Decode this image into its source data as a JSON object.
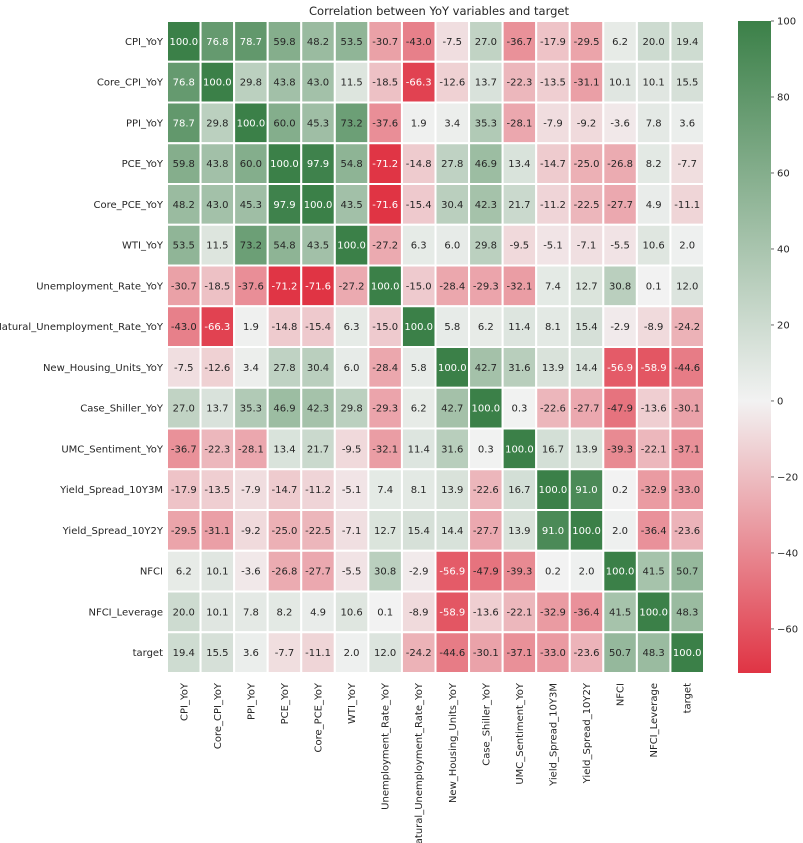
{
  "chart_data": {
    "type": "heatmap",
    "title": "Correlation between YoY variables and target",
    "labels": [
      "CPI_YoY",
      "Core_CPI_YoY",
      "PPI_YoY",
      "PCE_YoY",
      "Core_PCE_YoY",
      "WTI_YoY",
      "Unemployment_Rate_YoY",
      "Natural_Unemployment_Rate_YoY",
      "New_Housing_Units_YoY",
      "Case_Shiller_YoY",
      "UMC_Sentiment_YoY",
      "Yield_Spread_10Y3M",
      "Yield_Spread_10Y2Y",
      "NFCI",
      "NFCI_Leverage",
      "target"
    ],
    "values": [
      [
        100.0,
        76.8,
        78.7,
        59.8,
        48.2,
        53.5,
        -30.7,
        -43.0,
        -7.5,
        27.0,
        -36.7,
        -17.9,
        -29.5,
        6.2,
        20.0,
        19.4
      ],
      [
        76.8,
        100.0,
        29.8,
        43.8,
        43.0,
        11.5,
        -18.5,
        -66.3,
        -12.6,
        13.7,
        -22.3,
        -13.5,
        -31.1,
        10.1,
        10.1,
        15.5
      ],
      [
        78.7,
        29.8,
        100.0,
        60.0,
        45.3,
        73.2,
        -37.6,
        1.9,
        3.4,
        35.3,
        -28.1,
        -7.9,
        -9.2,
        -3.6,
        7.8,
        3.6
      ],
      [
        59.8,
        43.8,
        60.0,
        100.0,
        97.9,
        54.8,
        -71.2,
        -14.8,
        27.8,
        46.9,
        13.4,
        -14.7,
        -25.0,
        -26.8,
        8.2,
        -7.7
      ],
      [
        48.2,
        43.0,
        45.3,
        97.9,
        100.0,
        43.5,
        -71.6,
        -15.4,
        30.4,
        42.3,
        21.7,
        -11.2,
        -22.5,
        -27.7,
        4.9,
        -11.1
      ],
      [
        53.5,
        11.5,
        73.2,
        54.8,
        43.5,
        100.0,
        -27.2,
        6.3,
        6.0,
        29.8,
        -9.5,
        -5.1,
        -7.1,
        -5.5,
        10.6,
        2.0
      ],
      [
        -30.7,
        -18.5,
        -37.6,
        -71.2,
        -71.6,
        -27.2,
        100.0,
        -15.0,
        -28.4,
        -29.3,
        -32.1,
        7.4,
        12.7,
        30.8,
        0.1,
        12.0
      ],
      [
        -43.0,
        -66.3,
        1.9,
        -14.8,
        -15.4,
        6.3,
        -15.0,
        100.0,
        5.8,
        6.2,
        11.4,
        8.1,
        15.4,
        -2.9,
        -8.9,
        -24.2
      ],
      [
        -7.5,
        -12.6,
        3.4,
        27.8,
        30.4,
        6.0,
        -28.4,
        5.8,
        100.0,
        42.7,
        31.6,
        13.9,
        14.4,
        -56.9,
        -58.9,
        -44.6
      ],
      [
        27.0,
        13.7,
        35.3,
        46.9,
        42.3,
        29.8,
        -29.3,
        6.2,
        42.7,
        100.0,
        0.3,
        -22.6,
        -27.7,
        -47.9,
        -13.6,
        -30.1
      ],
      [
        -36.7,
        -22.3,
        -28.1,
        13.4,
        21.7,
        -9.5,
        -32.1,
        11.4,
        31.6,
        0.3,
        100.0,
        16.7,
        13.9,
        -39.3,
        -22.1,
        -37.1
      ],
      [
        -17.9,
        -13.5,
        -7.9,
        -14.7,
        -11.2,
        -5.1,
        7.4,
        8.1,
        13.9,
        -22.6,
        16.7,
        100.0,
        91.0,
        0.2,
        -32.9,
        -33.0
      ],
      [
        -29.5,
        -31.1,
        -9.2,
        -25.0,
        -22.5,
        -7.1,
        12.7,
        15.4,
        14.4,
        -27.7,
        13.9,
        91.0,
        100.0,
        2.0,
        -36.4,
        -23.6
      ],
      [
        6.2,
        10.1,
        -3.6,
        -26.8,
        -27.7,
        -5.5,
        30.8,
        -2.9,
        -56.9,
        -47.9,
        -39.3,
        0.2,
        2.0,
        100.0,
        41.5,
        50.7
      ],
      [
        20.0,
        10.1,
        7.8,
        8.2,
        4.9,
        10.6,
        0.1,
        -8.9,
        -58.9,
        -13.6,
        -22.1,
        -32.9,
        -36.4,
        41.5,
        100.0,
        48.3
      ],
      [
        19.4,
        15.5,
        3.6,
        -7.7,
        -11.1,
        2.0,
        12.0,
        -24.2,
        -44.6,
        -30.1,
        -37.1,
        -33.0,
        -23.6,
        50.7,
        48.3,
        100.0
      ]
    ],
    "colorbar": {
      "vmin": -71.6,
      "vmax": 100,
      "ticks": [
        100,
        80,
        60,
        40,
        20,
        0,
        -20,
        -40,
        -60
      ],
      "low_color": "#e03444",
      "mid_color": "#f2f2f2",
      "high_color": "#3b8048"
    },
    "annotation_format": "0.1f",
    "grid": false
  }
}
